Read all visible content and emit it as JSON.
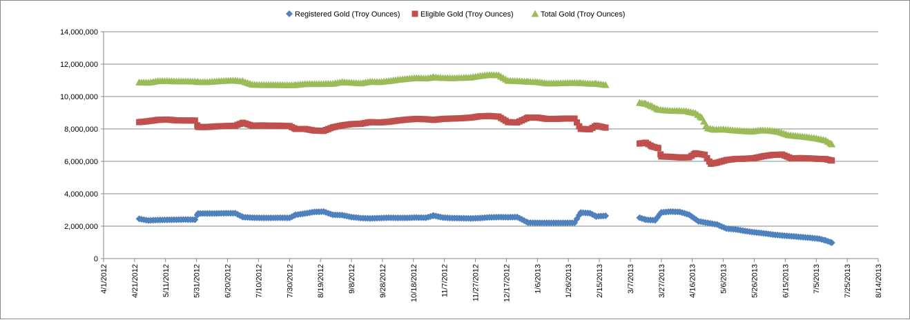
{
  "chart_data": {
    "type": "scatter",
    "title": "",
    "xlabel": "",
    "ylabel": "",
    "legend_position": "top",
    "grid": {
      "horizontal": true,
      "vertical": false
    },
    "ylim": [
      0,
      14000000
    ],
    "xlim": [
      "2012-04-01",
      "2013-08-14"
    ],
    "y_ticks": [
      0,
      2000000,
      4000000,
      6000000,
      8000000,
      10000000,
      12000000,
      14000000
    ],
    "y_tick_labels": [
      "0",
      "2,000,000",
      "4,000,000",
      "6,000,000",
      "8,000,000",
      "10,000,000",
      "12,000,000",
      "14,000,000"
    ],
    "x_ticks": [
      "2012-04-01",
      "2012-04-21",
      "2012-05-11",
      "2012-05-31",
      "2012-06-20",
      "2012-07-10",
      "2012-07-30",
      "2012-08-19",
      "2012-09-08",
      "2012-09-28",
      "2012-10-18",
      "2012-11-07",
      "2012-11-27",
      "2012-12-17",
      "2013-01-06",
      "2013-01-26",
      "2013-02-15",
      "2013-03-07",
      "2013-03-27",
      "2013-04-16",
      "2013-05-06",
      "2013-05-26",
      "2013-06-15",
      "2013-07-05",
      "2013-07-25",
      "2013-08-14"
    ],
    "x_tick_labels": [
      "4/1/2012",
      "4/21/2012",
      "5/11/2012",
      "5/31/2012",
      "6/20/2012",
      "7/10/2012",
      "7/30/2012",
      "8/19/2012",
      "9/8/2012",
      "9/28/2012",
      "10/18/2012",
      "11/7/2012",
      "11/27/2012",
      "12/17/2012",
      "1/6/2013",
      "1/26/2013",
      "2/15/2013",
      "3/7/2013",
      "3/27/2013",
      "4/16/2013",
      "5/6/2013",
      "5/26/2013",
      "6/15/2013",
      "7/5/2013",
      "7/25/2013",
      "8/14/2013"
    ],
    "series": [
      {
        "name": "Registered Gold (Troy Ounces)",
        "color": "#4F81BD",
        "marker": "diamond",
        "points": [
          [
            "2012-04-24",
            2450000
          ],
          [
            "2012-04-30",
            2350000
          ],
          [
            "2012-05-06",
            2380000
          ],
          [
            "2012-05-12",
            2390000
          ],
          [
            "2012-05-18",
            2400000
          ],
          [
            "2012-05-24",
            2410000
          ],
          [
            "2012-05-30",
            2400000
          ],
          [
            "2012-06-01",
            2780000
          ],
          [
            "2012-06-07",
            2780000
          ],
          [
            "2012-06-13",
            2780000
          ],
          [
            "2012-06-19",
            2800000
          ],
          [
            "2012-06-25",
            2800000
          ],
          [
            "2012-06-30",
            2560000
          ],
          [
            "2012-07-06",
            2520000
          ],
          [
            "2012-07-12",
            2510000
          ],
          [
            "2012-07-18",
            2510000
          ],
          [
            "2012-07-24",
            2520000
          ],
          [
            "2012-07-30",
            2510000
          ],
          [
            "2012-08-03",
            2700000
          ],
          [
            "2012-08-09",
            2780000
          ],
          [
            "2012-08-15",
            2880000
          ],
          [
            "2012-08-21",
            2900000
          ],
          [
            "2012-08-27",
            2700000
          ],
          [
            "2012-09-02",
            2680000
          ],
          [
            "2012-09-08",
            2560000
          ],
          [
            "2012-09-14",
            2500000
          ],
          [
            "2012-09-20",
            2480000
          ],
          [
            "2012-09-26",
            2500000
          ],
          [
            "2012-10-02",
            2520000
          ],
          [
            "2012-10-08",
            2510000
          ],
          [
            "2012-10-14",
            2510000
          ],
          [
            "2012-10-20",
            2530000
          ],
          [
            "2012-10-26",
            2520000
          ],
          [
            "2012-10-31",
            2650000
          ],
          [
            "2012-11-06",
            2530000
          ],
          [
            "2012-11-12",
            2500000
          ],
          [
            "2012-11-18",
            2490000
          ],
          [
            "2012-11-24",
            2480000
          ],
          [
            "2012-11-30",
            2500000
          ],
          [
            "2012-12-06",
            2540000
          ],
          [
            "2012-12-12",
            2560000
          ],
          [
            "2012-12-18",
            2550000
          ],
          [
            "2012-12-24",
            2560000
          ],
          [
            "2012-12-31",
            2220000
          ],
          [
            "2013-01-06",
            2200000
          ],
          [
            "2013-01-12",
            2200000
          ],
          [
            "2013-01-18",
            2200000
          ],
          [
            "2013-01-24",
            2200000
          ],
          [
            "2013-01-30",
            2210000
          ],
          [
            "2013-02-03",
            2840000
          ],
          [
            "2013-02-09",
            2800000
          ],
          [
            "2013-02-13",
            2600000
          ],
          [
            "2013-02-19",
            2640000
          ],
          [
            "2013-03-13",
            2520000
          ],
          [
            "2013-03-17",
            2400000
          ],
          [
            "2013-03-23",
            2360000
          ],
          [
            "2013-03-27",
            2850000
          ],
          [
            "2013-04-02",
            2900000
          ],
          [
            "2013-04-08",
            2880000
          ],
          [
            "2013-04-14",
            2700000
          ],
          [
            "2013-04-20",
            2300000
          ],
          [
            "2013-04-26",
            2200000
          ],
          [
            "2013-05-02",
            2100000
          ],
          [
            "2013-05-08",
            1850000
          ],
          [
            "2013-05-14",
            1800000
          ],
          [
            "2013-05-20",
            1700000
          ],
          [
            "2013-05-26",
            1620000
          ],
          [
            "2013-06-01",
            1560000
          ],
          [
            "2013-06-07",
            1480000
          ],
          [
            "2013-06-13",
            1420000
          ],
          [
            "2013-06-19",
            1380000
          ],
          [
            "2013-06-25",
            1330000
          ],
          [
            "2013-07-01",
            1280000
          ],
          [
            "2013-07-07",
            1220000
          ],
          [
            "2013-07-11",
            1120000
          ],
          [
            "2013-07-15",
            980000
          ]
        ]
      },
      {
        "name": "Eligible Gold (Troy Ounces)",
        "color": "#C0504D",
        "marker": "square",
        "points": [
          [
            "2012-04-24",
            8420000
          ],
          [
            "2012-04-30",
            8480000
          ],
          [
            "2012-05-06",
            8560000
          ],
          [
            "2012-05-12",
            8580000
          ],
          [
            "2012-05-18",
            8530000
          ],
          [
            "2012-05-24",
            8520000
          ],
          [
            "2012-05-30",
            8520000
          ],
          [
            "2012-06-01",
            8120000
          ],
          [
            "2012-06-07",
            8120000
          ],
          [
            "2012-06-13",
            8160000
          ],
          [
            "2012-06-19",
            8180000
          ],
          [
            "2012-06-25",
            8200000
          ],
          [
            "2012-06-30",
            8380000
          ],
          [
            "2012-07-06",
            8200000
          ],
          [
            "2012-07-12",
            8220000
          ],
          [
            "2012-07-18",
            8200000
          ],
          [
            "2012-07-24",
            8200000
          ],
          [
            "2012-07-30",
            8180000
          ],
          [
            "2012-08-03",
            8000000
          ],
          [
            "2012-08-09",
            8000000
          ],
          [
            "2012-08-15",
            7900000
          ],
          [
            "2012-08-21",
            7880000
          ],
          [
            "2012-08-27",
            8100000
          ],
          [
            "2012-09-02",
            8220000
          ],
          [
            "2012-09-08",
            8300000
          ],
          [
            "2012-09-14",
            8320000
          ],
          [
            "2012-09-20",
            8420000
          ],
          [
            "2012-09-26",
            8400000
          ],
          [
            "2012-10-02",
            8440000
          ],
          [
            "2012-10-08",
            8520000
          ],
          [
            "2012-10-14",
            8580000
          ],
          [
            "2012-10-20",
            8620000
          ],
          [
            "2012-10-26",
            8600000
          ],
          [
            "2012-10-31",
            8560000
          ],
          [
            "2012-11-06",
            8620000
          ],
          [
            "2012-11-12",
            8640000
          ],
          [
            "2012-11-18",
            8660000
          ],
          [
            "2012-11-24",
            8700000
          ],
          [
            "2012-11-30",
            8780000
          ],
          [
            "2012-12-06",
            8800000
          ],
          [
            "2012-12-12",
            8760000
          ],
          [
            "2012-12-18",
            8420000
          ],
          [
            "2012-12-24",
            8400000
          ],
          [
            "2012-12-31",
            8700000
          ],
          [
            "2013-01-06",
            8700000
          ],
          [
            "2013-01-12",
            8620000
          ],
          [
            "2013-01-18",
            8620000
          ],
          [
            "2013-01-24",
            8640000
          ],
          [
            "2013-01-30",
            8640000
          ],
          [
            "2013-02-03",
            8000000
          ],
          [
            "2013-02-09",
            7980000
          ],
          [
            "2013-02-13",
            8200000
          ],
          [
            "2013-02-19",
            8080000
          ],
          [
            "2013-03-13",
            7100000
          ],
          [
            "2013-03-17",
            7150000
          ],
          [
            "2013-03-21",
            6920000
          ],
          [
            "2013-03-25",
            6820000
          ],
          [
            "2013-03-27",
            6300000
          ],
          [
            "2013-04-02",
            6280000
          ],
          [
            "2013-04-08",
            6240000
          ],
          [
            "2013-04-14",
            6250000
          ],
          [
            "2013-04-18",
            6500000
          ],
          [
            "2013-04-24",
            6400000
          ],
          [
            "2013-04-28",
            5850000
          ],
          [
            "2013-05-02",
            5920000
          ],
          [
            "2013-05-08",
            6080000
          ],
          [
            "2013-05-14",
            6150000
          ],
          [
            "2013-05-20",
            6160000
          ],
          [
            "2013-05-26",
            6200000
          ],
          [
            "2013-06-01",
            6320000
          ],
          [
            "2013-06-07",
            6400000
          ],
          [
            "2013-06-13",
            6420000
          ],
          [
            "2013-06-19",
            6180000
          ],
          [
            "2013-06-25",
            6200000
          ],
          [
            "2013-07-01",
            6180000
          ],
          [
            "2013-07-07",
            6150000
          ],
          [
            "2013-07-11",
            6140000
          ],
          [
            "2013-07-15",
            6050000
          ]
        ]
      },
      {
        "name": "Total Gold (Troy Ounces)",
        "color": "#9BBB59",
        "marker": "triangle",
        "points": [
          [
            "2012-04-24",
            10880000
          ],
          [
            "2012-04-30",
            10860000
          ],
          [
            "2012-05-06",
            10960000
          ],
          [
            "2012-05-12",
            10960000
          ],
          [
            "2012-05-18",
            10940000
          ],
          [
            "2012-05-24",
            10940000
          ],
          [
            "2012-05-30",
            10930000
          ],
          [
            "2012-06-01",
            10900000
          ],
          [
            "2012-06-07",
            10900000
          ],
          [
            "2012-06-13",
            10940000
          ],
          [
            "2012-06-19",
            10980000
          ],
          [
            "2012-06-25",
            10990000
          ],
          [
            "2012-06-30",
            10940000
          ],
          [
            "2012-07-06",
            10740000
          ],
          [
            "2012-07-12",
            10720000
          ],
          [
            "2012-07-18",
            10720000
          ],
          [
            "2012-07-24",
            10720000
          ],
          [
            "2012-07-30",
            10700000
          ],
          [
            "2012-08-03",
            10720000
          ],
          [
            "2012-08-09",
            10780000
          ],
          [
            "2012-08-15",
            10780000
          ],
          [
            "2012-08-21",
            10780000
          ],
          [
            "2012-08-27",
            10800000
          ],
          [
            "2012-09-02",
            10900000
          ],
          [
            "2012-09-08",
            10860000
          ],
          [
            "2012-09-14",
            10820000
          ],
          [
            "2012-09-20",
            10920000
          ],
          [
            "2012-09-26",
            10900000
          ],
          [
            "2012-10-02",
            10960000
          ],
          [
            "2012-10-08",
            11040000
          ],
          [
            "2012-10-14",
            11100000
          ],
          [
            "2012-10-20",
            11150000
          ],
          [
            "2012-10-26",
            11120000
          ],
          [
            "2012-10-31",
            11200000
          ],
          [
            "2012-11-06",
            11150000
          ],
          [
            "2012-11-12",
            11140000
          ],
          [
            "2012-11-18",
            11160000
          ],
          [
            "2012-11-24",
            11180000
          ],
          [
            "2012-11-30",
            11280000
          ],
          [
            "2012-12-06",
            11340000
          ],
          [
            "2012-12-12",
            11320000
          ],
          [
            "2012-12-18",
            10980000
          ],
          [
            "2012-12-24",
            10960000
          ],
          [
            "2012-12-31",
            10920000
          ],
          [
            "2013-01-06",
            10900000
          ],
          [
            "2013-01-12",
            10820000
          ],
          [
            "2013-01-18",
            10820000
          ],
          [
            "2013-01-24",
            10840000
          ],
          [
            "2013-01-30",
            10850000
          ],
          [
            "2013-02-03",
            10840000
          ],
          [
            "2013-02-09",
            10800000
          ],
          [
            "2013-02-13",
            10800000
          ],
          [
            "2013-02-19",
            10720000
          ],
          [
            "2013-03-13",
            9620000
          ],
          [
            "2013-03-17",
            9560000
          ],
          [
            "2013-03-21",
            9400000
          ],
          [
            "2013-03-25",
            9200000
          ],
          [
            "2013-03-31",
            9140000
          ],
          [
            "2013-04-06",
            9120000
          ],
          [
            "2013-04-12",
            9100000
          ],
          [
            "2013-04-18",
            8980000
          ],
          [
            "2013-04-22",
            8700000
          ],
          [
            "2013-04-26",
            8050000
          ],
          [
            "2013-04-30",
            7960000
          ],
          [
            "2013-05-06",
            7980000
          ],
          [
            "2013-05-12",
            7920000
          ],
          [
            "2013-05-18",
            7880000
          ],
          [
            "2013-05-24",
            7840000
          ],
          [
            "2013-05-30",
            7920000
          ],
          [
            "2013-06-05",
            7900000
          ],
          [
            "2013-06-11",
            7820000
          ],
          [
            "2013-06-17",
            7620000
          ],
          [
            "2013-06-23",
            7560000
          ],
          [
            "2013-06-29",
            7500000
          ],
          [
            "2013-07-05",
            7420000
          ],
          [
            "2013-07-11",
            7300000
          ],
          [
            "2013-07-15",
            7060000
          ]
        ]
      }
    ]
  }
}
